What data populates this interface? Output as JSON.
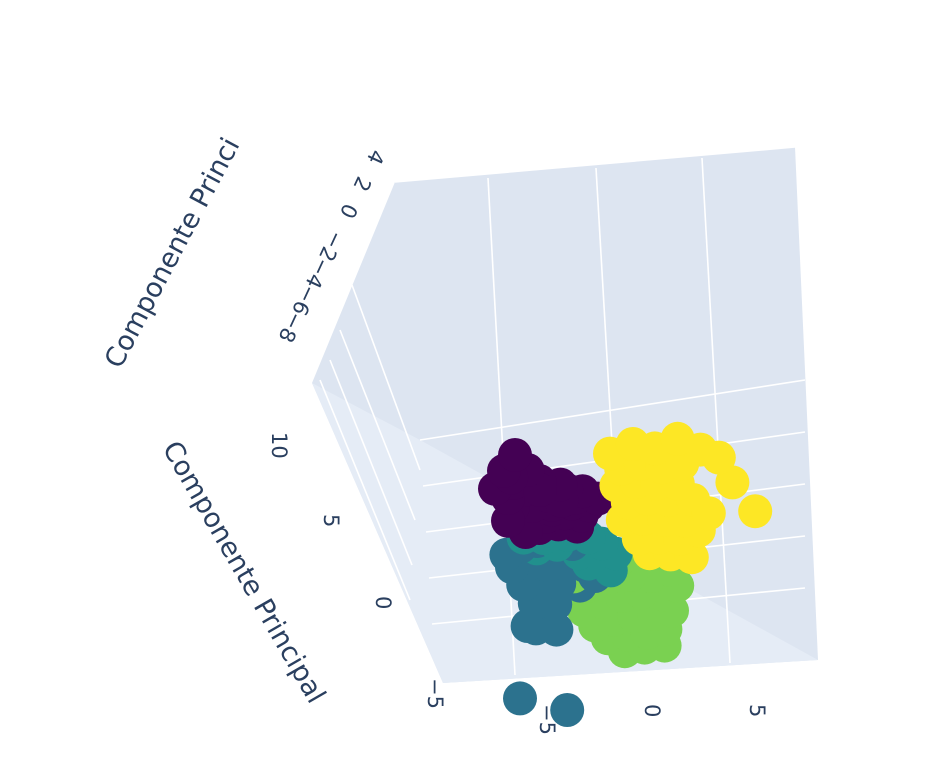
{
  "chart_data": {
    "type": "scatter",
    "title": "",
    "axis_titles": {
      "top": "Componente Princi",
      "left": "Componente Principal"
    },
    "tick_labels": {
      "top_axis": [
        "4",
        "2",
        "0",
        "−2",
        "−4",
        "−6",
        "−8"
      ],
      "left_axis": [
        "10",
        "5",
        "0",
        "−5"
      ],
      "bottom_axis": [
        "−5",
        "0",
        "5"
      ]
    },
    "grid": true,
    "legend": "none",
    "colorscale": "viridis",
    "series": [
      {
        "color": "#440154",
        "points": [
          [
            -3.5,
            9.5,
            3.5
          ],
          [
            -4.2,
            8.8,
            3.2
          ],
          [
            -3.0,
            8.6,
            2.8
          ],
          [
            -4.8,
            7.9,
            2.6
          ],
          [
            -3.8,
            8.0,
            2.4
          ],
          [
            -2.5,
            7.9,
            2.2
          ],
          [
            -1.5,
            7.6,
            2.0
          ],
          [
            -4.2,
            7.2,
            1.8
          ],
          [
            -3.2,
            7.4,
            1.6
          ],
          [
            -2.2,
            7.0,
            1.4
          ],
          [
            -1.2,
            7.1,
            1.2
          ],
          [
            -0.4,
            6.9,
            1.0
          ],
          [
            -4.0,
            6.5,
            0.9
          ],
          [
            -3.0,
            6.4,
            0.7
          ],
          [
            -2.0,
            6.3,
            0.5
          ],
          [
            -1.0,
            6.2,
            0.3
          ],
          [
            -0.2,
            6.0,
            0.1
          ],
          [
            -3.4,
            5.8,
            0.0
          ],
          [
            -2.4,
            5.6,
            -0.2
          ],
          [
            -1.4,
            5.6,
            -0.4
          ],
          [
            -0.6,
            5.4,
            -0.5
          ],
          [
            -2.8,
            5.0,
            -0.7
          ],
          [
            -1.8,
            5.0,
            -0.9
          ],
          [
            -0.9,
            4.8,
            -1.0
          ],
          [
            -4.4,
            6.0,
            1.0
          ],
          [
            -3.6,
            5.2,
            0.2
          ],
          [
            -1.6,
            6.8,
            1.6
          ],
          [
            0.3,
            6.4,
            0.6
          ],
          [
            -2.6,
            7.6,
            2.4
          ],
          [
            -3.9,
            8.4,
            2.9
          ],
          [
            -2.0,
            5.9,
            -0.1
          ],
          [
            -0.8,
            6.6,
            0.8
          ]
        ]
      },
      {
        "color": "#21908d",
        "points": [
          [
            -3.6,
            4.4,
            -1.5
          ],
          [
            -2.6,
            4.2,
            -1.8
          ],
          [
            -1.4,
            4.3,
            -1.6
          ],
          [
            -0.4,
            4.0,
            -1.9
          ],
          [
            0.2,
            3.6,
            -2.2
          ],
          [
            -2.0,
            3.8,
            -2.0
          ],
          [
            -3.0,
            3.6,
            -2.4
          ],
          [
            0.8,
            3.0,
            -2.6
          ],
          [
            -1.0,
            3.2,
            -2.5
          ],
          [
            0.4,
            2.2,
            -3.0
          ],
          [
            -0.6,
            2.6,
            -2.9
          ],
          [
            -2.4,
            4.7,
            -1.2
          ]
        ]
      },
      {
        "color": "#2c728e",
        "points": [
          [
            -4.6,
            3.6,
            -2.0
          ],
          [
            -3.8,
            3.8,
            -2.2
          ],
          [
            -2.9,
            3.9,
            -2.4
          ],
          [
            -2.0,
            3.5,
            -2.6
          ],
          [
            -1.2,
            3.6,
            -2.5
          ],
          [
            -4.4,
            2.8,
            -2.8
          ],
          [
            -3.5,
            2.8,
            -3.0
          ],
          [
            -2.6,
            2.6,
            -3.2
          ],
          [
            -1.7,
            2.6,
            -3.1
          ],
          [
            -0.8,
            2.4,
            -3.3
          ],
          [
            -4.0,
            1.8,
            -3.5
          ],
          [
            -3.1,
            1.8,
            -3.6
          ],
          [
            -2.2,
            1.6,
            -3.8
          ],
          [
            -1.2,
            1.4,
            -3.9
          ],
          [
            -3.6,
            0.8,
            -4.1
          ],
          [
            -2.6,
            0.6,
            -4.3
          ],
          [
            -3.8,
            -0.4,
            -4.6
          ],
          [
            -2.8,
            -0.6,
            -4.8
          ],
          [
            -0.4,
            1.9,
            -3.4
          ],
          [
            -4.2,
            -0.2,
            -4.4
          ],
          [
            -5.2,
            -4.0,
            -7.0
          ],
          [
            -3.0,
            -4.8,
            -7.4
          ]
        ]
      },
      {
        "color": "#7ad151",
        "points": [
          [
            -1.6,
            0.8,
            -4.6
          ],
          [
            -0.6,
            1.2,
            -4.4
          ],
          [
            0.4,
            1.5,
            -4.2
          ],
          [
            1.4,
            1.6,
            -4.0
          ],
          [
            2.4,
            1.4,
            -4.2
          ],
          [
            -1.2,
            0.0,
            -5.0
          ],
          [
            -0.2,
            0.3,
            -4.9
          ],
          [
            0.8,
            0.5,
            -4.8
          ],
          [
            1.8,
            0.6,
            -4.7
          ],
          [
            2.8,
            0.4,
            -4.8
          ],
          [
            3.6,
            0.8,
            -4.5
          ],
          [
            -0.8,
            -0.8,
            -5.4
          ],
          [
            0.2,
            -0.6,
            -5.3
          ],
          [
            1.2,
            -0.5,
            -5.2
          ],
          [
            2.2,
            -0.5,
            -5.2
          ],
          [
            3.1,
            -0.4,
            -5.1
          ],
          [
            -0.3,
            -1.5,
            -5.8
          ],
          [
            0.7,
            -1.4,
            -5.7
          ],
          [
            1.7,
            -1.4,
            -5.7
          ],
          [
            2.6,
            -1.3,
            -5.6
          ],
          [
            0.4,
            -2.2,
            -6.1
          ],
          [
            1.4,
            -2.1,
            -6.0
          ],
          [
            2.4,
            -2.1,
            -6.0
          ],
          [
            -1.4,
            1.8,
            -3.9
          ],
          [
            3.4,
            1.7,
            -3.8
          ],
          [
            1.0,
            2.4,
            -3.6
          ]
        ]
      },
      {
        "color": "#fde725",
        "points": [
          [
            1.2,
            9.0,
            3.0
          ],
          [
            2.4,
            9.4,
            3.3
          ],
          [
            3.4,
            9.2,
            3.5
          ],
          [
            4.6,
            9.6,
            3.8
          ],
          [
            5.6,
            9.0,
            3.6
          ],
          [
            1.6,
            8.2,
            2.6
          ],
          [
            2.6,
            8.4,
            2.8
          ],
          [
            3.6,
            8.2,
            2.9
          ],
          [
            4.6,
            8.3,
            3.0
          ],
          [
            1.2,
            7.4,
            2.2
          ],
          [
            2.2,
            7.5,
            2.3
          ],
          [
            3.2,
            7.4,
            2.4
          ],
          [
            4.2,
            7.3,
            2.4
          ],
          [
            1.6,
            6.5,
            1.7
          ],
          [
            2.6,
            6.6,
            1.8
          ],
          [
            3.6,
            6.5,
            1.9
          ],
          [
            4.8,
            6.4,
            1.9
          ],
          [
            1.2,
            5.6,
            1.1
          ],
          [
            2.2,
            5.6,
            1.2
          ],
          [
            3.2,
            5.5,
            1.3
          ],
          [
            4.2,
            5.4,
            1.3
          ],
          [
            1.8,
            4.6,
            0.6
          ],
          [
            2.8,
            4.6,
            0.7
          ],
          [
            3.8,
            4.5,
            0.8
          ],
          [
            4.8,
            4.8,
            0.9
          ],
          [
            2.2,
            3.8,
            0.1
          ],
          [
            3.2,
            3.7,
            0.2
          ],
          [
            4.2,
            3.5,
            0.2
          ],
          [
            6.4,
            8.6,
            3.6
          ],
          [
            6.8,
            7.4,
            3.2
          ],
          [
            7.6,
            6.0,
            2.8
          ],
          [
            5.4,
            5.8,
            1.9
          ]
        ]
      }
    ]
  }
}
